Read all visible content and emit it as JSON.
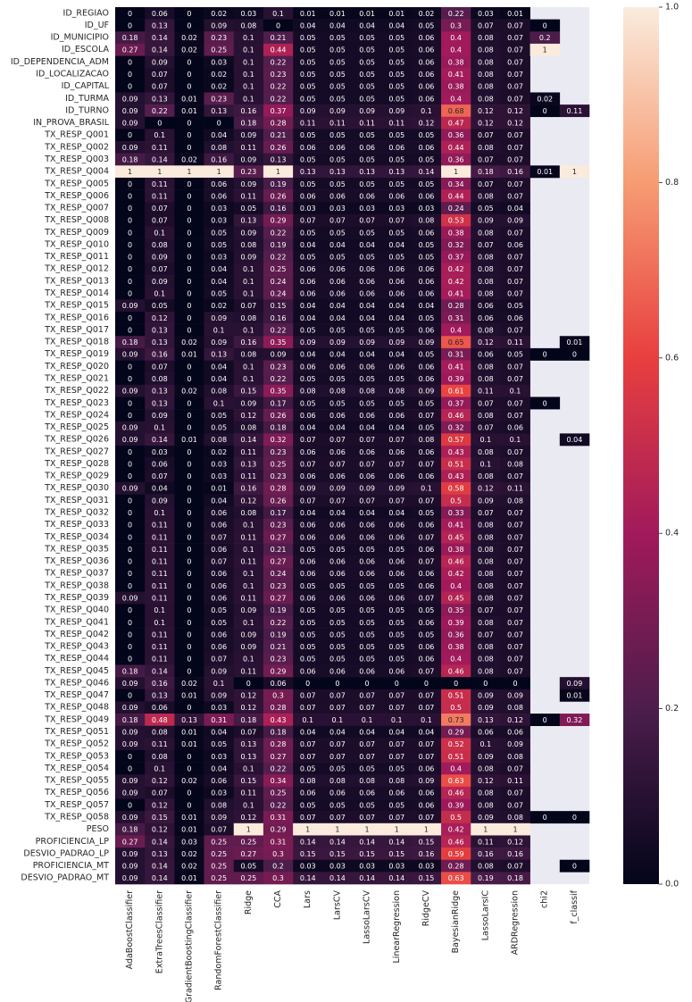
{
  "chart_data": {
    "type": "heatmap",
    "x_categories": [
      "AdaBoostClassifier",
      "ExtraTreesClassifier",
      "GradientBoostingClassifier",
      "RandomForestClassifier",
      "Ridge",
      "CCA",
      "Lars",
      "LarsCV",
      "LassoLarsCV",
      "LinearRegression",
      "RidgeCV",
      "BayesianRidge",
      "LassoLarsIC",
      "ARDRegression",
      "chi2",
      "f_classif"
    ],
    "y_categories": [
      "ID_REGIAO",
      "ID_UF",
      "ID_MUNICIPIO",
      "ID_ESCOLA",
      "ID_DEPENDENCIA_ADM",
      "ID_LOCALIZACAO",
      "ID_CAPITAL",
      "ID_TURMA",
      "ID_TURNO",
      "IN_PROVA_BRASIL",
      "TX_RESP_Q001",
      "TX_RESP_Q002",
      "TX_RESP_Q003",
      "TX_RESP_Q004",
      "TX_RESP_Q005",
      "TX_RESP_Q006",
      "TX_RESP_Q007",
      "TX_RESP_Q008",
      "TX_RESP_Q009",
      "TX_RESP_Q010",
      "TX_RESP_Q011",
      "TX_RESP_Q012",
      "TX_RESP_Q013",
      "TX_RESP_Q014",
      "TX_RESP_Q015",
      "TX_RESP_Q016",
      "TX_RESP_Q017",
      "TX_RESP_Q018",
      "TX_RESP_Q019",
      "TX_RESP_Q020",
      "TX_RESP_Q021",
      "TX_RESP_Q022",
      "TX_RESP_Q023",
      "TX_RESP_Q024",
      "TX_RESP_Q025",
      "TX_RESP_Q026",
      "TX_RESP_Q027",
      "TX_RESP_Q028",
      "TX_RESP_Q029",
      "TX_RESP_Q030",
      "TX_RESP_Q031",
      "TX_RESP_Q032",
      "TX_RESP_Q033",
      "TX_RESP_Q034",
      "TX_RESP_Q035",
      "TX_RESP_Q036",
      "TX_RESP_Q037",
      "TX_RESP_Q038",
      "TX_RESP_Q039",
      "TX_RESP_Q040",
      "TX_RESP_Q041",
      "TX_RESP_Q042",
      "TX_RESP_Q043",
      "TX_RESP_Q044",
      "TX_RESP_Q045",
      "TX_RESP_Q046",
      "TX_RESP_Q047",
      "TX_RESP_Q048",
      "TX_RESP_Q049",
      "TX_RESP_Q051",
      "TX_RESP_Q052",
      "TX_RESP_Q053",
      "TX_RESP_Q054",
      "TX_RESP_Q055",
      "TX_RESP_Q056",
      "TX_RESP_Q057",
      "TX_RESP_Q058",
      "PESO",
      "PROFICIENCIA_LP",
      "DESVIO_PADRAO_LP",
      "PROFICIENCIA_MT",
      "DESVIO_PADRAO_MT"
    ],
    "values": [
      [
        0,
        0.06,
        0,
        0.02,
        0.03,
        0.1,
        0.01,
        0.01,
        0.01,
        0.01,
        0.02,
        0.22,
        0.03,
        0.01,
        null,
        null
      ],
      [
        0,
        0.13,
        0,
        0.09,
        0.08,
        0,
        0.04,
        0.04,
        0.04,
        0.04,
        0.05,
        0.3,
        0.07,
        0.07,
        0,
        null
      ],
      [
        0.18,
        0.14,
        0.02,
        0.23,
        0.1,
        0.21,
        0.05,
        0.05,
        0.05,
        0.05,
        0.06,
        0.4,
        0.08,
        0.07,
        0.2,
        null
      ],
      [
        0.27,
        0.14,
        0.02,
        0.25,
        0.1,
        0.44,
        0.05,
        0.05,
        0.05,
        0.05,
        0.06,
        0.4,
        0.08,
        0.07,
        1,
        null
      ],
      [
        0,
        0.09,
        0,
        0.03,
        0.1,
        0.22,
        0.05,
        0.05,
        0.05,
        0.05,
        0.06,
        0.38,
        0.08,
        0.07,
        null,
        null
      ],
      [
        0,
        0.07,
        0,
        0.02,
        0.1,
        0.23,
        0.05,
        0.05,
        0.05,
        0.05,
        0.06,
        0.41,
        0.08,
        0.07,
        null,
        null
      ],
      [
        0,
        0.07,
        0,
        0.02,
        0.1,
        0.22,
        0.05,
        0.05,
        0.05,
        0.05,
        0.06,
        0.38,
        0.08,
        0.07,
        null,
        null
      ],
      [
        0.09,
        0.13,
        0.01,
        0.23,
        0.1,
        0.22,
        0.05,
        0.05,
        0.05,
        0.05,
        0.06,
        0.4,
        0.08,
        0.07,
        0.02,
        null
      ],
      [
        0.09,
        0.22,
        0.01,
        0.13,
        0.16,
        0.37,
        0.09,
        0.09,
        0.09,
        0.09,
        0.1,
        0.68,
        0.12,
        0.12,
        0,
        0.11
      ],
      [
        0.09,
        0,
        0,
        0,
        0.18,
        0.28,
        0.11,
        0.11,
        0.11,
        0.11,
        0.12,
        0.47,
        0.12,
        0.12,
        null,
        null
      ],
      [
        0,
        0.1,
        0,
        0.04,
        0.09,
        0.21,
        0.05,
        0.05,
        0.05,
        0.05,
        0.05,
        0.36,
        0.07,
        0.07,
        null,
        null
      ],
      [
        0.09,
        0.11,
        0,
        0.08,
        0.11,
        0.26,
        0.06,
        0.06,
        0.06,
        0.06,
        0.06,
        0.44,
        0.08,
        0.07,
        null,
        null
      ],
      [
        0.18,
        0.14,
        0.02,
        0.16,
        0.09,
        0.13,
        0.05,
        0.05,
        0.05,
        0.05,
        0.05,
        0.36,
        0.07,
        0.07,
        null,
        null
      ],
      [
        1,
        1,
        1,
        1,
        0.23,
        1,
        0.13,
        0.13,
        0.13,
        0.13,
        0.14,
        1,
        0.18,
        0.16,
        0.01,
        1
      ],
      [
        0,
        0.11,
        0,
        0.06,
        0.09,
        0.19,
        0.05,
        0.05,
        0.05,
        0.05,
        0.05,
        0.34,
        0.07,
        0.07,
        null,
        null
      ],
      [
        0,
        0.11,
        0,
        0.06,
        0.11,
        0.26,
        0.06,
        0.06,
        0.06,
        0.06,
        0.06,
        0.44,
        0.08,
        0.07,
        null,
        null
      ],
      [
        0,
        0.07,
        0,
        0.03,
        0.05,
        0.16,
        0.03,
        0.03,
        0.03,
        0.03,
        0.03,
        0.24,
        0.05,
        0.04,
        null,
        null
      ],
      [
        0,
        0.07,
        0,
        0.03,
        0.13,
        0.29,
        0.07,
        0.07,
        0.07,
        0.07,
        0.08,
        0.53,
        0.09,
        0.09,
        null,
        null
      ],
      [
        0,
        0.1,
        0,
        0.05,
        0.09,
        0.22,
        0.05,
        0.05,
        0.05,
        0.05,
        0.06,
        0.38,
        0.08,
        0.07,
        null,
        null
      ],
      [
        0,
        0.08,
        0,
        0.05,
        0.08,
        0.19,
        0.04,
        0.04,
        0.04,
        0.04,
        0.05,
        0.32,
        0.07,
        0.06,
        null,
        null
      ],
      [
        0,
        0.09,
        0,
        0.03,
        0.09,
        0.22,
        0.05,
        0.05,
        0.05,
        0.05,
        0.05,
        0.37,
        0.08,
        0.07,
        null,
        null
      ],
      [
        0,
        0.07,
        0,
        0.04,
        0.1,
        0.25,
        0.06,
        0.06,
        0.06,
        0.06,
        0.06,
        0.42,
        0.08,
        0.07,
        null,
        null
      ],
      [
        0,
        0.09,
        0,
        0.04,
        0.1,
        0.24,
        0.06,
        0.06,
        0.06,
        0.06,
        0.06,
        0.42,
        0.08,
        0.07,
        null,
        null
      ],
      [
        0,
        0.1,
        0,
        0.05,
        0.1,
        0.24,
        0.06,
        0.06,
        0.06,
        0.06,
        0.06,
        0.41,
        0.08,
        0.07,
        null,
        null
      ],
      [
        0.09,
        0.05,
        0,
        0.02,
        0.07,
        0.15,
        0.04,
        0.04,
        0.04,
        0.04,
        0.04,
        0.28,
        0.06,
        0.05,
        null,
        null
      ],
      [
        0,
        0.12,
        0,
        0.09,
        0.08,
        0.16,
        0.04,
        0.04,
        0.04,
        0.04,
        0.05,
        0.31,
        0.06,
        0.06,
        null,
        null
      ],
      [
        0,
        0.13,
        0,
        0.1,
        0.1,
        0.22,
        0.05,
        0.05,
        0.05,
        0.05,
        0.06,
        0.4,
        0.08,
        0.07,
        null,
        null
      ],
      [
        0.18,
        0.13,
        0.02,
        0.09,
        0.16,
        0.35,
        0.09,
        0.09,
        0.09,
        0.09,
        0.09,
        0.65,
        0.12,
        0.11,
        null,
        0.01
      ],
      [
        0.09,
        0.16,
        0.01,
        0.13,
        0.08,
        0.09,
        0.04,
        0.04,
        0.04,
        0.04,
        0.05,
        0.31,
        0.06,
        0.05,
        0,
        0
      ],
      [
        0,
        0.07,
        0,
        0.04,
        0.1,
        0.23,
        0.06,
        0.06,
        0.06,
        0.06,
        0.06,
        0.41,
        0.08,
        0.07,
        null,
        null
      ],
      [
        0,
        0.08,
        0,
        0.04,
        0.1,
        0.22,
        0.05,
        0.05,
        0.05,
        0.05,
        0.06,
        0.39,
        0.08,
        0.07,
        null,
        null
      ],
      [
        0.09,
        0.13,
        0.02,
        0.08,
        0.15,
        0.35,
        0.08,
        0.08,
        0.08,
        0.08,
        0.09,
        0.61,
        0.11,
        0.1,
        null,
        null
      ],
      [
        0,
        0.13,
        0,
        0.1,
        0.09,
        0.17,
        0.05,
        0.05,
        0.05,
        0.05,
        0.05,
        0.37,
        0.07,
        0.07,
        0,
        null
      ],
      [
        0,
        0.09,
        0,
        0.05,
        0.12,
        0.26,
        0.06,
        0.06,
        0.06,
        0.06,
        0.07,
        0.46,
        0.08,
        0.07,
        null,
        null
      ],
      [
        0.09,
        0.1,
        0,
        0.05,
        0.08,
        0.18,
        0.04,
        0.04,
        0.04,
        0.04,
        0.05,
        0.32,
        0.07,
        0.06,
        null,
        null
      ],
      [
        0.09,
        0.14,
        0.01,
        0.08,
        0.14,
        0.32,
        0.07,
        0.07,
        0.07,
        0.07,
        0.08,
        0.57,
        0.1,
        0.1,
        null,
        0.04
      ],
      [
        0,
        0.03,
        0,
        0.02,
        0.11,
        0.23,
        0.06,
        0.06,
        0.06,
        0.06,
        0.06,
        0.43,
        0.08,
        0.07,
        null,
        null
      ],
      [
        0,
        0.06,
        0,
        0.03,
        0.13,
        0.25,
        0.07,
        0.07,
        0.07,
        0.07,
        0.07,
        0.51,
        0.1,
        0.08,
        null,
        null
      ],
      [
        0,
        0.07,
        0,
        0.03,
        0.11,
        0.23,
        0.06,
        0.06,
        0.06,
        0.06,
        0.06,
        0.43,
        0.08,
        0.07,
        null,
        null
      ],
      [
        0.09,
        0.04,
        0,
        0.01,
        0.16,
        0.28,
        0.09,
        0.09,
        0.09,
        0.09,
        0.1,
        0.58,
        0.12,
        0.11,
        null,
        null
      ],
      [
        0,
        0.09,
        0,
        0.04,
        0.12,
        0.26,
        0.07,
        0.07,
        0.07,
        0.07,
        0.07,
        0.5,
        0.09,
        0.08,
        null,
        null
      ],
      [
        0,
        0.1,
        0,
        0.06,
        0.08,
        0.17,
        0.04,
        0.04,
        0.04,
        0.04,
        0.05,
        0.33,
        0.07,
        0.07,
        null,
        null
      ],
      [
        0,
        0.11,
        0,
        0.06,
        0.1,
        0.23,
        0.06,
        0.06,
        0.06,
        0.06,
        0.06,
        0.41,
        0.08,
        0.07,
        null,
        null
      ],
      [
        0,
        0.11,
        0,
        0.07,
        0.11,
        0.27,
        0.06,
        0.06,
        0.06,
        0.06,
        0.07,
        0.45,
        0.08,
        0.07,
        null,
        null
      ],
      [
        0,
        0.11,
        0,
        0.06,
        0.1,
        0.21,
        0.05,
        0.05,
        0.05,
        0.05,
        0.06,
        0.38,
        0.08,
        0.07,
        null,
        null
      ],
      [
        0,
        0.11,
        0,
        0.07,
        0.11,
        0.27,
        0.06,
        0.06,
        0.06,
        0.06,
        0.07,
        0.46,
        0.08,
        0.07,
        null,
        null
      ],
      [
        0,
        0.11,
        0,
        0.06,
        0.1,
        0.24,
        0.06,
        0.06,
        0.06,
        0.06,
        0.06,
        0.42,
        0.08,
        0.07,
        null,
        null
      ],
      [
        0,
        0.11,
        0,
        0.06,
        0.1,
        0.23,
        0.05,
        0.05,
        0.05,
        0.05,
        0.06,
        0.4,
        0.08,
        0.07,
        null,
        null
      ],
      [
        0.09,
        0.11,
        0,
        0.06,
        0.11,
        0.27,
        0.06,
        0.06,
        0.06,
        0.06,
        0.07,
        0.45,
        0.08,
        0.07,
        null,
        null
      ],
      [
        0,
        0.1,
        0,
        0.05,
        0.09,
        0.19,
        0.05,
        0.05,
        0.05,
        0.05,
        0.05,
        0.35,
        0.07,
        0.07,
        null,
        null
      ],
      [
        0,
        0.1,
        0,
        0.05,
        0.1,
        0.22,
        0.05,
        0.05,
        0.05,
        0.05,
        0.06,
        0.39,
        0.08,
        0.07,
        null,
        null
      ],
      [
        0,
        0.11,
        0,
        0.06,
        0.09,
        0.19,
        0.05,
        0.05,
        0.05,
        0.05,
        0.05,
        0.36,
        0.07,
        0.07,
        null,
        null
      ],
      [
        0,
        0.11,
        0,
        0.06,
        0.09,
        0.21,
        0.05,
        0.05,
        0.05,
        0.05,
        0.06,
        0.38,
        0.08,
        0.07,
        null,
        null
      ],
      [
        0,
        0.11,
        0,
        0.07,
        0.1,
        0.23,
        0.05,
        0.05,
        0.05,
        0.05,
        0.06,
        0.4,
        0.08,
        0.07,
        null,
        null
      ],
      [
        0.18,
        0.14,
        0,
        0.09,
        0.11,
        0.29,
        0.06,
        0.06,
        0.06,
        0.06,
        0.07,
        0.46,
        0.08,
        0.07,
        null,
        null
      ],
      [
        0.09,
        0.16,
        0.02,
        0.1,
        0,
        0.06,
        0,
        0,
        0,
        0,
        0,
        0,
        0,
        0,
        null,
        0.09
      ],
      [
        0,
        0.13,
        0.01,
        0.09,
        0.12,
        0.3,
        0.07,
        0.07,
        0.07,
        0.07,
        0.07,
        0.51,
        0.09,
        0.09,
        null,
        0.01
      ],
      [
        0.09,
        0.06,
        0,
        0.03,
        0.12,
        0.28,
        0.07,
        0.07,
        0.07,
        0.07,
        0.07,
        0.5,
        0.09,
        0.08,
        null,
        null
      ],
      [
        0.18,
        0.48,
        0.13,
        0.31,
        0.18,
        0.43,
        0.1,
        0.1,
        0.1,
        0.1,
        0.1,
        0.73,
        0.13,
        0.12,
        0,
        0.32
      ],
      [
        0.09,
        0.08,
        0.01,
        0.04,
        0.07,
        0.18,
        0.04,
        0.04,
        0.04,
        0.04,
        0.04,
        0.29,
        0.06,
        0.06,
        null,
        null
      ],
      [
        0.09,
        0.11,
        0.01,
        0.05,
        0.13,
        0.28,
        0.07,
        0.07,
        0.07,
        0.07,
        0.07,
        0.52,
        0.1,
        0.09,
        null,
        null
      ],
      [
        0,
        0.08,
        0,
        0.03,
        0.13,
        0.27,
        0.07,
        0.07,
        0.07,
        0.07,
        0.07,
        0.51,
        0.09,
        0.08,
        null,
        null
      ],
      [
        0,
        0.1,
        0,
        0.04,
        0.1,
        0.22,
        0.05,
        0.05,
        0.05,
        0.05,
        0.06,
        0.4,
        0.08,
        0.07,
        null,
        null
      ],
      [
        0.09,
        0.12,
        0.02,
        0.06,
        0.15,
        0.34,
        0.08,
        0.08,
        0.08,
        0.08,
        0.09,
        0.63,
        0.12,
        0.11,
        null,
        null
      ],
      [
        0.09,
        0.07,
        0,
        0.03,
        0.11,
        0.25,
        0.06,
        0.06,
        0.06,
        0.06,
        0.06,
        0.46,
        0.08,
        0.07,
        null,
        null
      ],
      [
        0,
        0.12,
        0,
        0.08,
        0.1,
        0.22,
        0.05,
        0.05,
        0.05,
        0.05,
        0.06,
        0.39,
        0.08,
        0.07,
        null,
        null
      ],
      [
        0.09,
        0.15,
        0.01,
        0.09,
        0.12,
        0.31,
        0.07,
        0.07,
        0.07,
        0.07,
        0.07,
        0.5,
        0.09,
        0.08,
        0,
        0
      ],
      [
        0.18,
        0.12,
        0.01,
        0.07,
        1,
        0.29,
        1,
        1,
        1,
        1,
        1,
        0.42,
        1,
        1,
        null,
        null
      ],
      [
        0.27,
        0.14,
        0.03,
        0.25,
        0.25,
        0.31,
        0.14,
        0.14,
        0.14,
        0.14,
        0.15,
        0.46,
        0.11,
        0.12,
        null,
        null
      ],
      [
        0.09,
        0.13,
        0.02,
        0.25,
        0.27,
        0.3,
        0.15,
        0.15,
        0.15,
        0.15,
        0.16,
        0.59,
        0.16,
        0.16,
        null,
        null
      ],
      [
        0.09,
        0.14,
        0.02,
        0.25,
        0.05,
        0.2,
        0.03,
        0.03,
        0.03,
        0.03,
        0.03,
        0.28,
        0.08,
        0.07,
        null,
        0
      ],
      [
        0.09,
        0.14,
        0.01,
        0.25,
        0.25,
        0.3,
        0.14,
        0.14,
        0.14,
        0.14,
        0.15,
        0.63,
        0.19,
        0.18,
        null,
        null
      ]
    ],
    "colormap": [
      "#03051a",
      "#4c1d4b",
      "#a11a5b",
      "#e83f3f",
      "#f69c73",
      "#faebdd"
    ],
    "missing_color": "#eaeaf2",
    "clim": [
      0,
      1
    ],
    "colorbar_ticks": [
      {
        "value": 0,
        "label": "0.0"
      },
      {
        "value": 0.2,
        "label": "0.2"
      },
      {
        "value": 0.4,
        "label": "0.4"
      },
      {
        "value": 0.6,
        "label": "0.6"
      },
      {
        "value": 0.8,
        "label": "0.8"
      },
      {
        "value": 1,
        "label": "1.0"
      }
    ]
  }
}
